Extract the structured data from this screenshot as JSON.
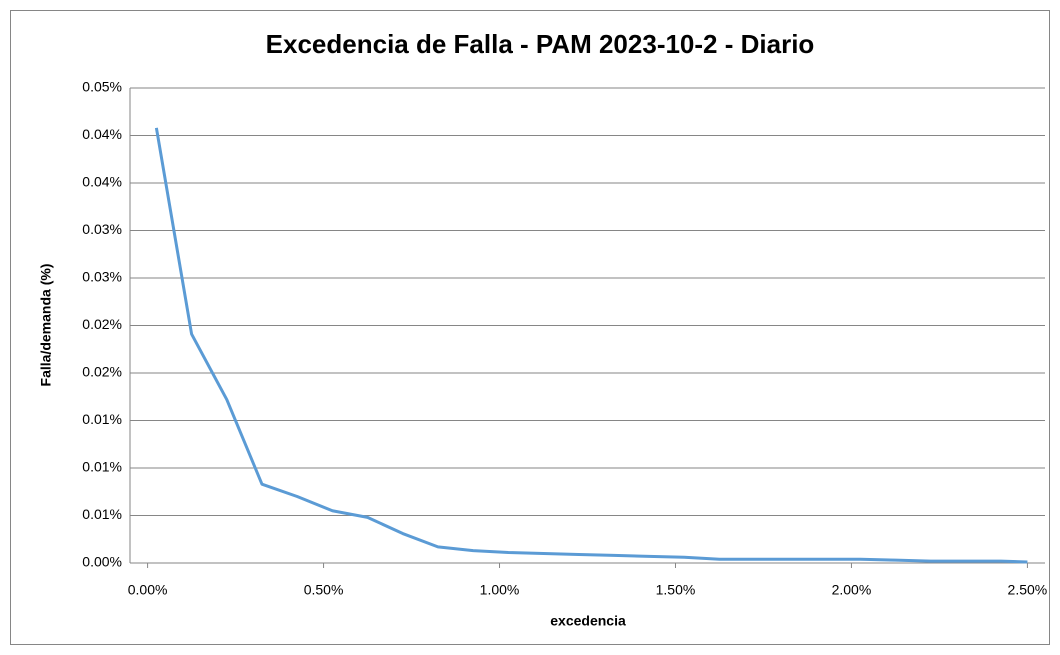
{
  "chart_data": {
    "type": "line",
    "title": "Excedencia de Falla - PAM 2023-10-2 - Diario",
    "x_label": "excedencia",
    "y_label": "Falla/demanda (%)",
    "x": [
      0.025,
      0.125,
      0.225,
      0.325,
      0.425,
      0.525,
      0.625,
      0.725,
      0.825,
      0.925,
      1.025,
      1.125,
      1.225,
      1.325,
      1.425,
      1.525,
      1.625,
      1.725,
      1.825,
      1.925,
      2.025,
      2.125,
      2.225,
      2.325,
      2.425,
      2.5
    ],
    "series": [
      {
        "color": "#5b9bd5",
        "values": [
          0.0458,
          0.0241,
          0.0172,
          0.0083,
          0.007,
          0.0055,
          0.0048,
          0.0031,
          0.0017,
          0.0013,
          0.0011,
          0.001,
          0.0009,
          0.0008,
          0.0007,
          0.0006,
          0.0004,
          0.0004,
          0.0004,
          0.0004,
          0.0004,
          0.0003,
          0.0002,
          0.0002,
          0.0002,
          0.0001
        ]
      }
    ],
    "xlim": [
      -0.05,
      2.55
    ],
    "ylim": [
      0,
      0.05
    ],
    "xticks": [
      {
        "value": 0,
        "label": "0.00%"
      },
      {
        "value": 0.5,
        "label": "0.50%"
      },
      {
        "value": 1,
        "label": "1.00%"
      },
      {
        "value": 1.5,
        "label": "1.50%"
      },
      {
        "value": 2,
        "label": "2.00%"
      },
      {
        "value": 2.5,
        "label": "2.50%"
      }
    ],
    "yticks": [
      {
        "value": 0,
        "label": "0.00%"
      },
      {
        "value": 0.005,
        "label": "0.01%"
      },
      {
        "value": 0.01,
        "label": "0.01%"
      },
      {
        "value": 0.015,
        "label": "0.01%"
      },
      {
        "value": 0.02,
        "label": "0.02%"
      },
      {
        "value": 0.025,
        "label": "0.02%"
      },
      {
        "value": 0.03,
        "label": "0.03%"
      },
      {
        "value": 0.035,
        "label": "0.03%"
      },
      {
        "value": 0.04,
        "label": "0.04%"
      },
      {
        "value": 0.045,
        "label": "0.04%"
      },
      {
        "value": 0.05,
        "label": "0.05%"
      }
    ],
    "grid": true
  }
}
